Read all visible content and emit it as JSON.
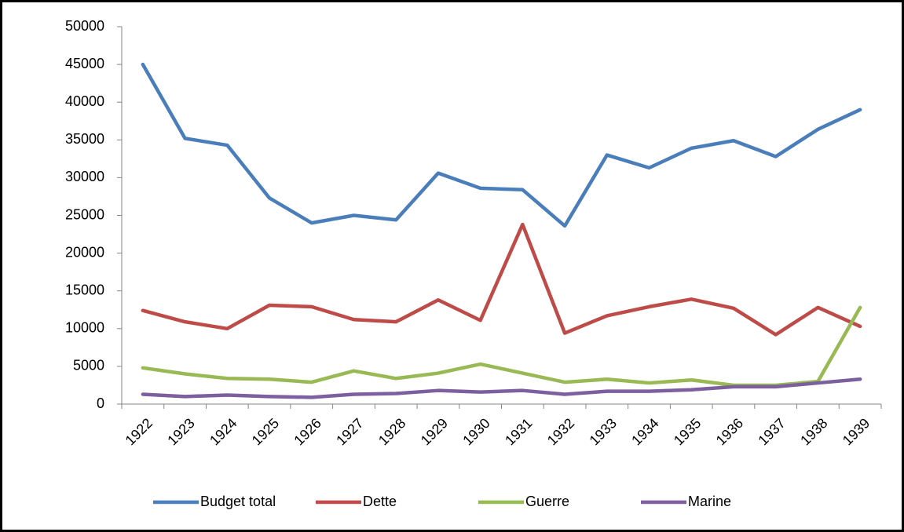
{
  "chart_data": {
    "type": "line",
    "categories": [
      "1922",
      "1923",
      "1924",
      "1925",
      "1926",
      "1927",
      "1928",
      "1929",
      "1930",
      "1931",
      "1932",
      "1933",
      "1934",
      "1935",
      "1936",
      "1937",
      "1938",
      "1939"
    ],
    "series": [
      {
        "name": "Budget total",
        "color": "#4a7ebb",
        "values": [
          45000,
          35200,
          34300,
          27300,
          24000,
          25000,
          24400,
          30600,
          28600,
          28400,
          23600,
          33000,
          31300,
          33900,
          34900,
          32800,
          36400,
          39000
        ]
      },
      {
        "name": "Dette",
        "color": "#be4b48",
        "values": [
          12400,
          10900,
          10000,
          13100,
          12900,
          11200,
          10900,
          13800,
          11100,
          23800,
          9400,
          11700,
          12900,
          13900,
          12700,
          9200,
          12800,
          10300
        ]
      },
      {
        "name": "Guerre",
        "color": "#98b954",
        "values": [
          4800,
          4000,
          3400,
          3300,
          2900,
          4400,
          3400,
          4100,
          5300,
          4100,
          2900,
          3300,
          2800,
          3200,
          2500,
          2500,
          3000,
          12800
        ]
      },
      {
        "name": "Marine",
        "color": "#7d5fa0",
        "values": [
          1300,
          1000,
          1200,
          1000,
          900,
          1300,
          1400,
          1800,
          1600,
          1800,
          1300,
          1700,
          1700,
          1900,
          2300,
          2300,
          2800,
          3300
        ]
      }
    ],
    "ylim": [
      0,
      50000
    ],
    "yticks": [
      0,
      5000,
      10000,
      15000,
      20000,
      25000,
      30000,
      35000,
      40000,
      45000,
      50000
    ],
    "grid": false,
    "legend": "bottom"
  }
}
